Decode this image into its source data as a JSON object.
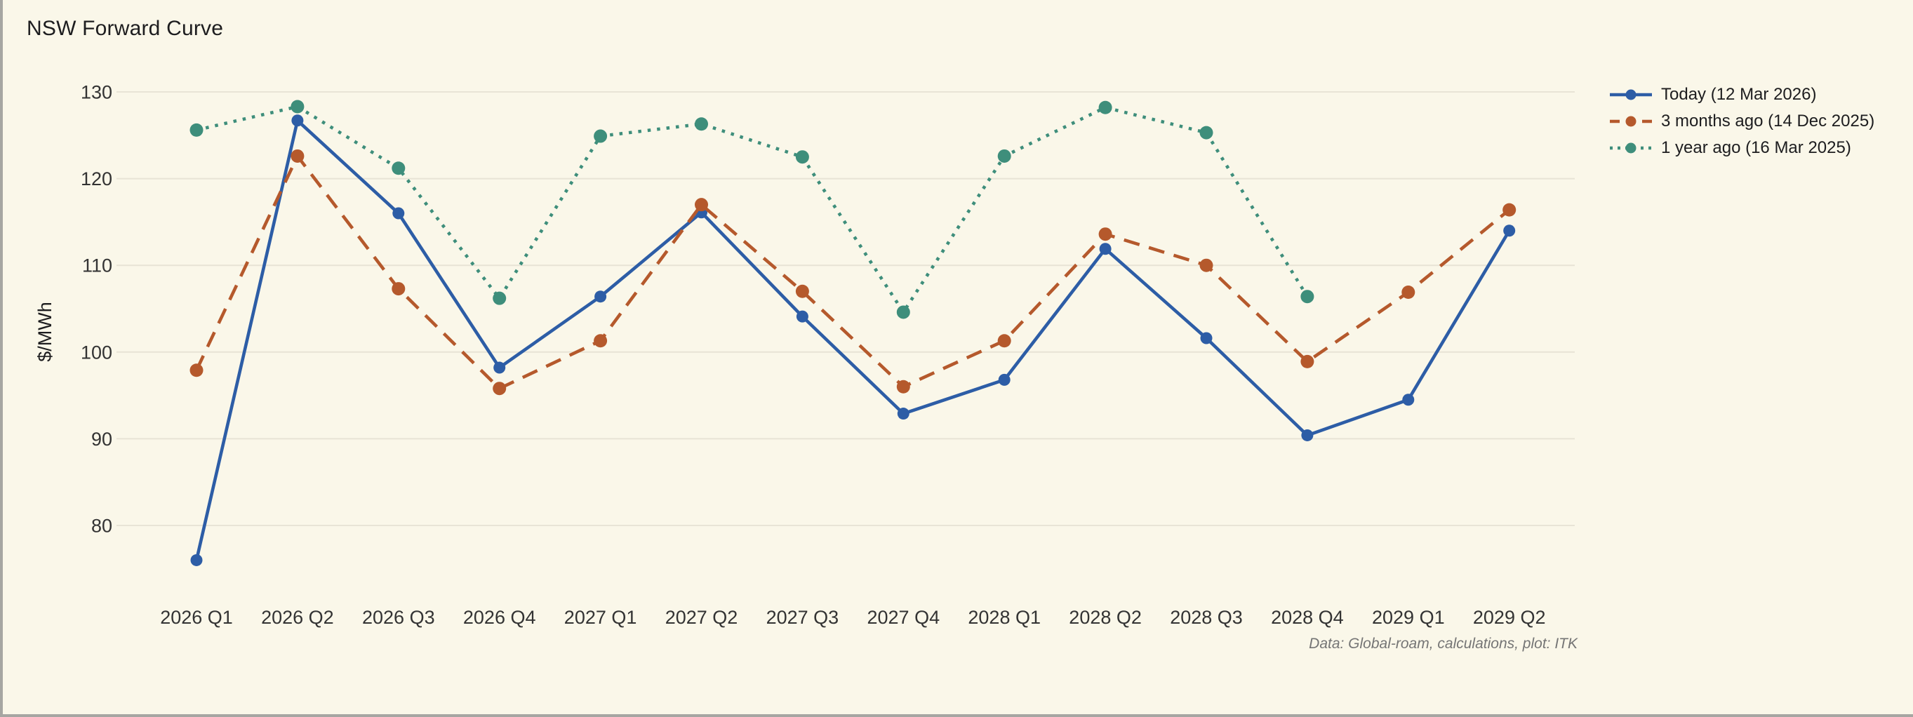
{
  "page": {
    "background": "#faf7e9",
    "edge_color": "#a6a6a2",
    "grid_color": "#e8e4d6",
    "tick_color": "#333333"
  },
  "chart": {
    "title": "NSW Forward Curve",
    "ylabel": "$/MWh",
    "source_note": "Data: Global-roam, calculations, plot: ITK"
  },
  "chart_data": {
    "type": "line",
    "title": "NSW Forward Curve",
    "ylabel": "$/MWh",
    "xlabel": "",
    "yticks": [
      80,
      90,
      100,
      110,
      120,
      130
    ],
    "ylim": [
      74,
      132
    ],
    "grid": true,
    "legend_position": "top-right",
    "categories": [
      "2026 Q1",
      "2026 Q2",
      "2026 Q3",
      "2026 Q4",
      "2027 Q1",
      "2027 Q2",
      "2027 Q3",
      "2027 Q4",
      "2028 Q1",
      "2028 Q2",
      "2028 Q3",
      "2028 Q4",
      "2029 Q1",
      "2029 Q2"
    ],
    "series": [
      {
        "name": "Today (12 Mar 2026)",
        "color": "#2d5da6",
        "line_style": "solid",
        "marker": "circle",
        "values": [
          76.0,
          126.7,
          116.0,
          98.2,
          106.4,
          116.1,
          104.1,
          92.9,
          96.8,
          111.9,
          101.6,
          90.4,
          94.5,
          114.0
        ]
      },
      {
        "name": "3 months ago (14 Dec 2025)",
        "color": "#b5592c",
        "line_style": "dashed",
        "marker": "circle",
        "values": [
          97.9,
          122.6,
          107.3,
          95.8,
          101.3,
          117.0,
          107.0,
          96.0,
          101.3,
          113.6,
          110.0,
          98.9,
          106.9,
          116.4
        ]
      },
      {
        "name": "1 year ago (16 Mar 2025)",
        "color": "#3e8e7b",
        "line_style": "dotted",
        "marker": "circle",
        "values": [
          125.6,
          128.3,
          121.2,
          106.2,
          124.9,
          126.3,
          122.5,
          104.6,
          122.6,
          128.2,
          125.3,
          106.4,
          null,
          null
        ]
      }
    ]
  }
}
